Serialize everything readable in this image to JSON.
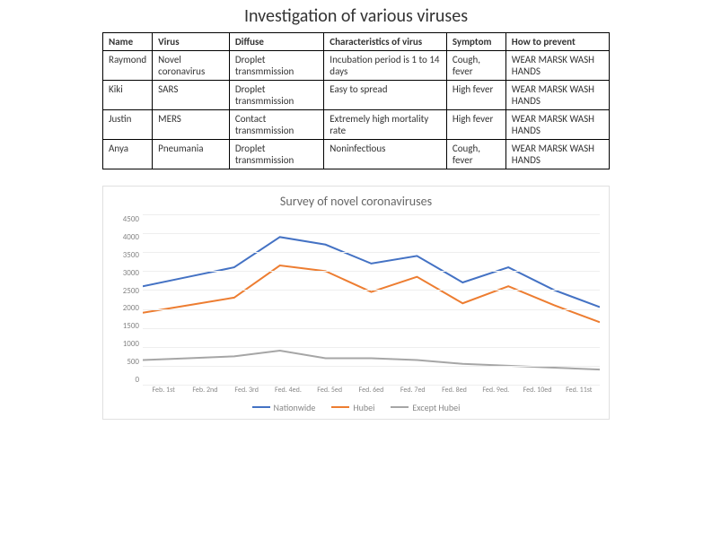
{
  "title": "Investigation of various viruses",
  "table": {
    "columns": [
      "Name",
      "Virus",
      "Diffuse",
      "Characteristics of virus",
      "Symptom",
      "How to prevent"
    ],
    "rows": [
      [
        "Raymond",
        "Novel coronavirus",
        "Droplet transmmission",
        "Incubation period is 1 to 14 days",
        "Cough, fever",
        "WEAR MARSK WASH HANDS"
      ],
      [
        "Kiki",
        "SARS",
        "Droplet transmmission",
        "Easy to spread",
        "High fever",
        "WEAR MARSK WASH HANDS"
      ],
      [
        "Justin",
        "MERS",
        "Contact transmmission",
        "Extremely high mortality rate",
        "High fever",
        "WEAR MARSK WASH HANDS"
      ],
      [
        "Anya",
        "Pneumania",
        "Droplet transmmission",
        "Noninfectious",
        "Cough, fever",
        "WEAR MARSK WASH HANDS"
      ]
    ]
  },
  "chart": {
    "type": "line",
    "title": "Survey  of novel coronaviruses",
    "categories": [
      "Feb. 1st",
      "Feb. 2nd",
      "Fed. 3rd",
      "Fed. 4ed.",
      "Fed. 5ed",
      "Fed. 6ed",
      "Fed. 7ed",
      "Fed. 8ed",
      "Fed. 9ed.",
      "Fed. 10ed",
      "Fed. 11st"
    ],
    "series": [
      {
        "name": "Nationwide",
        "color": "#4472c4",
        "values": [
          2600,
          2850,
          3100,
          3900,
          3700,
          3200,
          3400,
          2700,
          3100,
          2500,
          2050
        ]
      },
      {
        "name": "Hubei",
        "color": "#ed7d31",
        "values": [
          1900,
          2100,
          2300,
          3150,
          3000,
          2450,
          2850,
          2150,
          2600,
          2100,
          1650
        ]
      },
      {
        "name": "Except Hubei",
        "color": "#a6a6a6",
        "values": [
          650,
          700,
          750,
          900,
          700,
          700,
          650,
          550,
          500,
          450,
          400
        ]
      }
    ],
    "ylim": [
      0,
      4500
    ],
    "ytick_step": 500,
    "background_color": "#ffffff",
    "grid_color": "#eeeeee",
    "line_width": 2,
    "title_fontsize": 14,
    "axis_fontsize": 9,
    "legend_fontsize": 10,
    "text_color": "#888888"
  }
}
